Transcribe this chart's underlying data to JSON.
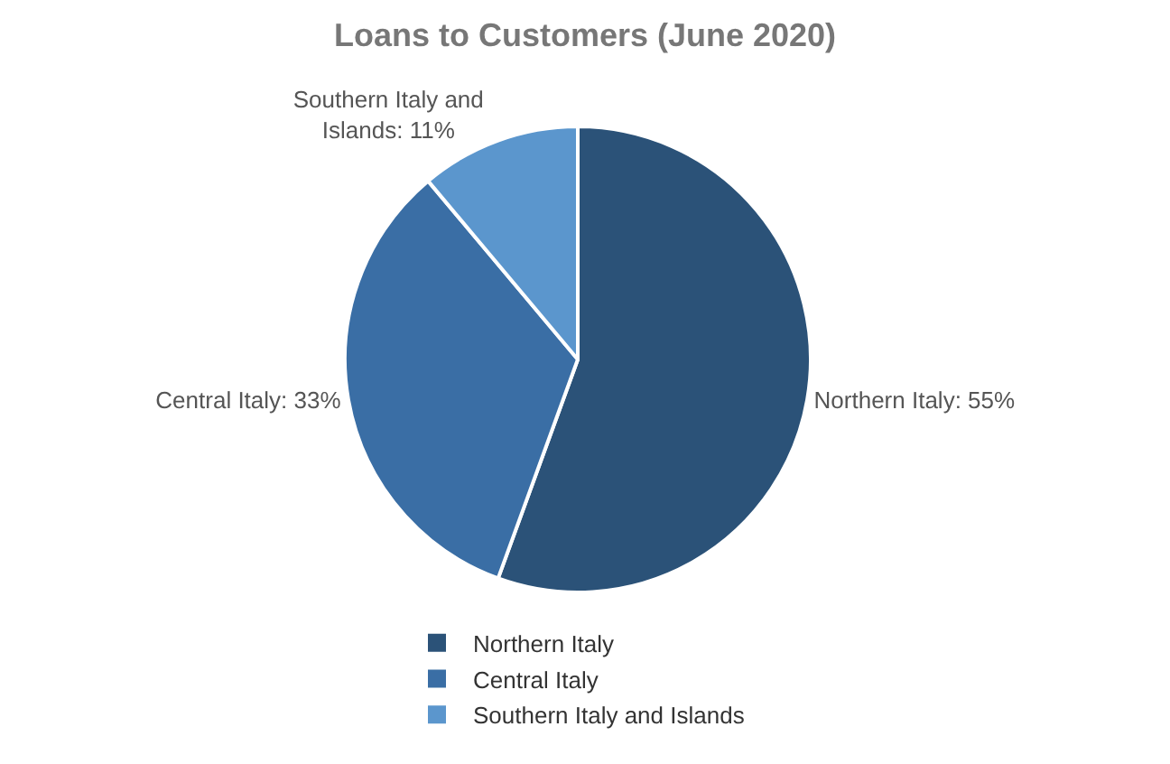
{
  "chart_data": {
    "type": "pie",
    "title": "Loans to Customers (June 2020)",
    "categories": [
      "Northern Italy",
      "Central Italy",
      "Southern Italy and Islands"
    ],
    "values": [
      55,
      33,
      11
    ],
    "colors": [
      "#2b5278",
      "#3a6ea5",
      "#5b96cd"
    ],
    "value_labels": [
      "Northern Italy: 55%",
      "Central Italy: 33%",
      "Southern Italy and\nIslands: 11%"
    ],
    "legend": "bottom"
  }
}
